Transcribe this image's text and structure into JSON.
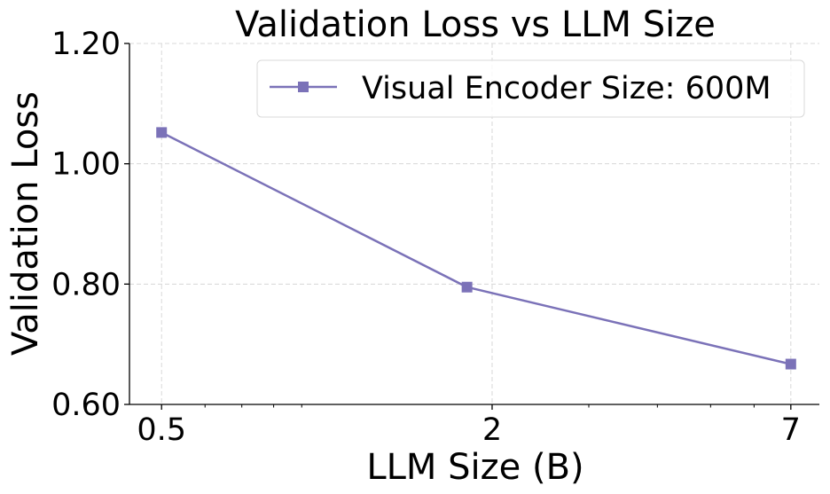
{
  "chart_data": {
    "type": "line",
    "title": "Validation Loss vs LLM Size",
    "xlabel": "LLM Size (B)",
    "ylabel": "Validation Loss",
    "xscale": "log",
    "xlim": [
      0.437,
      7.89
    ],
    "ylim": [
      0.6,
      1.2
    ],
    "xticks": [
      0.5,
      2,
      7
    ],
    "xtick_labels": [
      "0.5",
      "2",
      "7"
    ],
    "xminor_ticks": [
      0.6,
      0.7,
      0.8,
      0.9,
      3,
      4,
      5,
      6
    ],
    "yticks": [
      0.6,
      0.8,
      1.0,
      1.2
    ],
    "ytick_labels": [
      "0.60",
      "0.80",
      "1.00",
      "1.20"
    ],
    "grid": true,
    "legend_position": "top-right",
    "series": [
      {
        "name": "Visual Encoder Size: 600M",
        "color": "#7b72b8",
        "marker": "square",
        "x": [
          0.5,
          1.8,
          7
        ],
        "y": [
          1.052,
          0.795,
          0.667
        ]
      }
    ]
  }
}
